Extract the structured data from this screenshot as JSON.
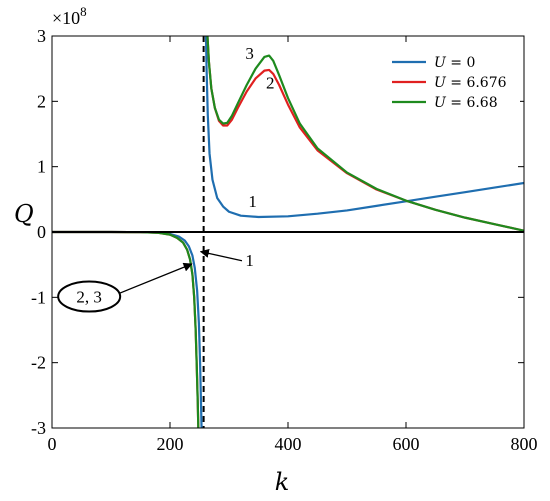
{
  "chart_data": {
    "type": "line",
    "title": "",
    "xlabel": "k",
    "ylabel": "Q",
    "y_exponent_label": "×10",
    "y_exponent_power": "8",
    "xlim": [
      0,
      800
    ],
    "ylim": [
      -3,
      3
    ],
    "y_scale_factor": 100000000,
    "x_ticks": [
      0,
      200,
      400,
      600,
      800
    ],
    "y_ticks": [
      -3,
      -2,
      -1,
      0,
      1,
      2,
      3
    ],
    "x_tick_labels": [
      "0",
      "200",
      "400",
      "600",
      "800"
    ],
    "y_tick_labels": [
      "-3",
      "-2",
      "-1",
      "0",
      "1",
      "2",
      "3"
    ],
    "grid": false,
    "legend_position": "top-right",
    "asymptote_x": 257,
    "series": [
      {
        "name": "U = 0",
        "legend_var": "U",
        "legend_eq": " = 0",
        "color": "#1f6eb0",
        "segments": [
          [
            [
              0,
              0
            ],
            [
              100,
              0
            ],
            [
              150,
              -0.002
            ],
            [
              180,
              -0.01
            ],
            [
              200,
              -0.03
            ],
            [
              215,
              -0.07
            ],
            [
              225,
              -0.13
            ],
            [
              232,
              -0.22
            ],
            [
              238,
              -0.36
            ],
            [
              242,
              -0.55
            ],
            [
              246,
              -0.9
            ],
            [
              249,
              -1.4
            ],
            [
              251,
              -2.0
            ],
            [
              252.5,
              -2.6
            ],
            [
              253.5,
              -3.0
            ]
          ],
          [
            [
              261,
              3.0
            ],
            [
              262,
              2.5
            ],
            [
              264,
              1.8
            ],
            [
              267,
              1.2
            ],
            [
              272,
              0.8
            ],
            [
              280,
              0.52
            ],
            [
              290,
              0.39
            ],
            [
              300,
              0.31
            ],
            [
              320,
              0.25
            ],
            [
              350,
              0.23
            ],
            [
              400,
              0.24
            ],
            [
              450,
              0.28
            ],
            [
              500,
              0.33
            ],
            [
              550,
              0.4
            ],
            [
              600,
              0.47
            ],
            [
              650,
              0.54
            ],
            [
              700,
              0.61
            ],
            [
              750,
              0.68
            ],
            [
              800,
              0.75
            ]
          ]
        ]
      },
      {
        "name": "U = 6.676",
        "legend_var": "U",
        "legend_eq": " = 6.676",
        "color": "#e02020",
        "segments": [
          [
            [
              0,
              0
            ],
            [
              100,
              0
            ],
            [
              150,
              -0.003
            ],
            [
              180,
              -0.012
            ],
            [
              200,
              -0.04
            ],
            [
              212,
              -0.09
            ],
            [
              222,
              -0.16
            ],
            [
              229,
              -0.27
            ],
            [
              234,
              -0.42
            ],
            [
              238,
              -0.65
            ],
            [
              241,
              -1.0
            ],
            [
              243.5,
              -1.5
            ],
            [
              245.5,
              -2.1
            ],
            [
              247,
              -2.6
            ],
            [
              248,
              -3.0
            ]
          ],
          [
            [
              263.5,
              3.0
            ],
            [
              266,
              2.6
            ],
            [
              270,
              2.2
            ],
            [
              276,
              1.9
            ],
            [
              283,
              1.7
            ],
            [
              290,
              1.63
            ],
            [
              297,
              1.63
            ],
            [
              305,
              1.72
            ],
            [
              315,
              1.9
            ],
            [
              330,
              2.15
            ],
            [
              345,
              2.35
            ],
            [
              360,
              2.47
            ],
            [
              368,
              2.48
            ],
            [
              375,
              2.42
            ],
            [
              385,
              2.25
            ],
            [
              400,
              1.95
            ],
            [
              420,
              1.6
            ],
            [
              450,
              1.25
            ],
            [
              500,
              0.9
            ],
            [
              550,
              0.65
            ],
            [
              600,
              0.48
            ],
            [
              650,
              0.34
            ],
            [
              700,
              0.22
            ],
            [
              750,
              0.12
            ],
            [
              800,
              0.02
            ]
          ]
        ]
      },
      {
        "name": "U = 6.68",
        "legend_var": "U",
        "legend_eq": " = 6.68",
        "color": "#1e8a1e",
        "segments": [
          [
            [
              0,
              0
            ],
            [
              100,
              0
            ],
            [
              150,
              -0.003
            ],
            [
              180,
              -0.012
            ],
            [
              200,
              -0.04
            ],
            [
              212,
              -0.09
            ],
            [
              222,
              -0.16
            ],
            [
              229,
              -0.27
            ],
            [
              234,
              -0.42
            ],
            [
              238,
              -0.65
            ],
            [
              241,
              -1.0
            ],
            [
              243.5,
              -1.5
            ],
            [
              245.5,
              -2.1
            ],
            [
              247,
              -2.6
            ],
            [
              248,
              -3.0
            ]
          ],
          [
            [
              263.5,
              3.0
            ],
            [
              266,
              2.6
            ],
            [
              270,
              2.2
            ],
            [
              276,
              1.9
            ],
            [
              283,
              1.72
            ],
            [
              290,
              1.66
            ],
            [
              297,
              1.67
            ],
            [
              305,
              1.78
            ],
            [
              315,
              1.97
            ],
            [
              330,
              2.25
            ],
            [
              345,
              2.5
            ],
            [
              360,
              2.68
            ],
            [
              368,
              2.7
            ],
            [
              375,
              2.62
            ],
            [
              385,
              2.4
            ],
            [
              400,
              2.05
            ],
            [
              420,
              1.66
            ],
            [
              450,
              1.28
            ],
            [
              500,
              0.91
            ],
            [
              550,
              0.66
            ],
            [
              600,
              0.48
            ],
            [
              650,
              0.34
            ],
            [
              700,
              0.22
            ],
            [
              750,
              0.12
            ],
            [
              800,
              0.02
            ]
          ]
        ]
      }
    ],
    "annotations": [
      {
        "text": "1",
        "x": 340,
        "y": 0.38
      },
      {
        "text": "2",
        "x": 370,
        "y": 2.2
      },
      {
        "text": "3",
        "x": 335,
        "y": 2.65
      },
      {
        "text": "1",
        "x": 335,
        "y": -0.52,
        "arrow_to": [
          252,
          -0.3
        ],
        "arrow_from": [
          322,
          -0.44
        ]
      },
      {
        "text": "2, 3",
        "x": 63,
        "y": -1.08,
        "boxed": true,
        "arrow_to": [
          237,
          -0.49
        ],
        "arrow_from": [
          100,
          -0.99
        ]
      }
    ]
  }
}
